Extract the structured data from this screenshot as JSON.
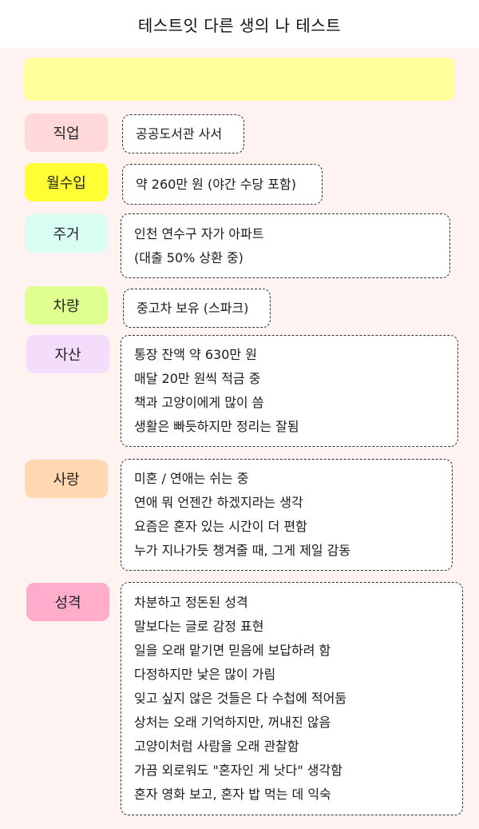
{
  "header": {
    "title": "테스트잇 다른 생의 나 테스트"
  },
  "rows": [
    {
      "label": "직업",
      "label_color": "#ffd9d9",
      "lines": [
        "공공도서관 사서"
      ]
    },
    {
      "label": "월수입",
      "label_color": "#ffff33",
      "lines": [
        "약 260만 원 (야간 수당 포함)"
      ]
    },
    {
      "label": "주거",
      "label_color": "#d9fcf3",
      "lines": [
        "인천 연수구 자가 아파트",
        "(대출 50% 상환 중)"
      ]
    },
    {
      "label": "차량",
      "label_color": "#dfff8f",
      "lines": [
        "중고차 보유 (스파크)"
      ]
    },
    {
      "label": "자산",
      "label_color": "#f4dcfb",
      "lines": [
        "통장 잔액 약 630만 원",
        "매달 20만 원씩 적금 중",
        "책과 고양이에게 많이 씀",
        "생활은 빠듯하지만 정리는 잘됨"
      ]
    },
    {
      "label": "사랑",
      "label_color": "#ffd7b0",
      "lines": [
        "미혼 / 연애는 쉬는 중",
        "연애 뭐 언젠간 하겠지라는 생각",
        "요즘은 혼자 있는 시간이 더 편함",
        "누가 지나가듯 챙겨줄 때, 그게 제일 감동"
      ]
    },
    {
      "label": "성격",
      "label_color": "#ffadcb",
      "lines": [
        "차분하고 정돈된 성격",
        "말보다는 글로 감정 표현",
        "일을 오래 맡기면 믿음에 보답하려 함",
        "다정하지만 낯은 많이 가림",
        "잊고 싶지 않은 것들은 다 수첩에 적어둠",
        "상처는 오래 기억하지만, 꺼내진 않음",
        "고양이처럼 사람을 오래 관찰함",
        "가끔 외로워도 \"혼자인 게 낫다\" 생각함",
        "혼자 영화 보고, 혼자 밥 먹는 데 익숙"
      ]
    }
  ]
}
